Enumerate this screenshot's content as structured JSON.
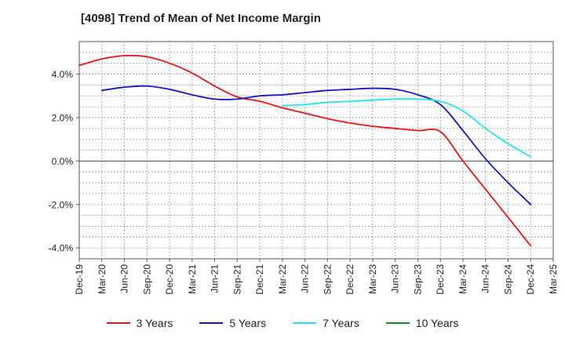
{
  "chart_data": {
    "type": "line",
    "title": "[4098]  Trend of Mean of Net Income Margin",
    "xlabel": "",
    "ylabel": "",
    "x": [
      "Dec-19",
      "Mar-20",
      "Jun-20",
      "Sep-20",
      "Dec-20",
      "Mar-21",
      "Jun-21",
      "Sep-21",
      "Dec-21",
      "Mar-22",
      "Jun-22",
      "Sep-22",
      "Dec-22",
      "Mar-23",
      "Jun-23",
      "Sep-23",
      "Dec-23",
      "Mar-24",
      "Jun-24",
      "Sep-24",
      "Dec-24",
      "Mar-25"
    ],
    "ylim": [
      -4.5,
      5.5
    ],
    "yticks": [
      "4.0%",
      "2.0%",
      "0.0%",
      "-2.0%",
      "-4.0%"
    ],
    "ytick_values": [
      4,
      2,
      0,
      -2,
      -4
    ],
    "grid": true,
    "legend_position": "bottom",
    "series": [
      {
        "name": "3 Years",
        "color": "#e8141b",
        "values": [
          4.4,
          4.7,
          4.85,
          4.8,
          4.5,
          4.05,
          3.45,
          2.95,
          2.75,
          2.45,
          2.2,
          1.95,
          1.75,
          1.6,
          1.5,
          1.4,
          1.35,
          0.0,
          -1.3,
          -2.6,
          -3.9,
          null
        ]
      },
      {
        "name": "5 Years",
        "color": "#1515c8",
        "values": [
          null,
          3.25,
          3.4,
          3.45,
          3.3,
          3.05,
          2.85,
          2.85,
          3.0,
          3.05,
          3.15,
          3.25,
          3.3,
          3.35,
          3.3,
          3.05,
          2.6,
          1.4,
          0.1,
          -1.0,
          -2.0,
          null
        ]
      },
      {
        "name": "7 Years",
        "color": "#22e5e5",
        "values": [
          null,
          null,
          null,
          null,
          null,
          null,
          null,
          null,
          null,
          2.55,
          2.6,
          2.7,
          2.75,
          2.8,
          2.85,
          2.85,
          2.75,
          2.3,
          1.5,
          0.8,
          0.2,
          null
        ]
      },
      {
        "name": "10 Years",
        "color": "#1f8c1f",
        "values": [
          null,
          null,
          null,
          null,
          null,
          null,
          null,
          null,
          null,
          null,
          null,
          null,
          null,
          null,
          null,
          null,
          null,
          null,
          null,
          null,
          null,
          null
        ]
      }
    ]
  }
}
